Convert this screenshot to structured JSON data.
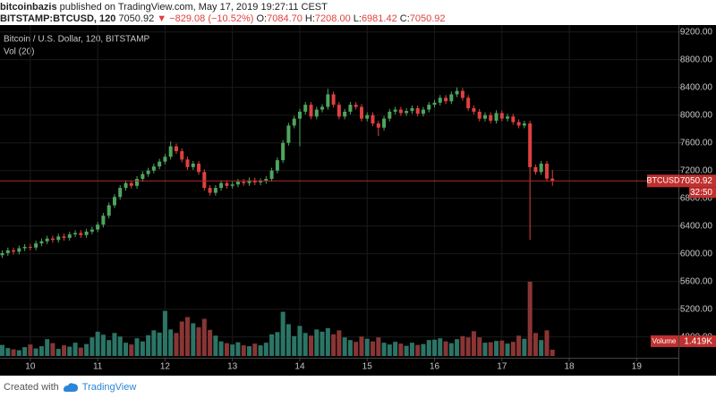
{
  "header": {
    "publisher": "bitcoinbazis",
    "published": "published on TradingView.com, May 17, 2019 19:27:11 CEST",
    "symbol": "BITSTAMP:BTCUSD, 120",
    "last": "7050.92",
    "change": "▼ −829.08 (−10.52%)",
    "ohlc": [
      {
        "label": "O:",
        "value": "7084.70"
      },
      {
        "label": "H:",
        "value": "7208.00"
      },
      {
        "label": "L:",
        "value": "6981.42"
      },
      {
        "label": "C:",
        "value": "7050.92"
      }
    ]
  },
  "footer": {
    "created": "Created with",
    "brand": "TradingView"
  },
  "chart_data": {
    "type": "candlestick",
    "title": "Bitcoin / U.S. Dollar, 120, BITSTAMP",
    "subtitle": "Vol (20)",
    "symbol": "BTCUSD",
    "countdown": "32:50",
    "up_color": "#4fa55d",
    "down_color": "#e0403f",
    "grid": true,
    "x": [
      9.583,
      9.667,
      9.75,
      9.833,
      9.917,
      10,
      10.083,
      10.167,
      10.25,
      10.333,
      10.417,
      10.5,
      10.583,
      10.667,
      10.75,
      10.833,
      10.917,
      11,
      11.083,
      11.167,
      11.25,
      11.333,
      11.417,
      11.5,
      11.583,
      11.667,
      11.75,
      11.833,
      11.917,
      12,
      12.083,
      12.167,
      12.25,
      12.333,
      12.417,
      12.5,
      12.583,
      12.667,
      12.75,
      12.833,
      12.917,
      13,
      13.083,
      13.167,
      13.25,
      13.333,
      13.417,
      13.5,
      13.583,
      13.667,
      13.75,
      13.833,
      13.917,
      14,
      14.083,
      14.167,
      14.25,
      14.333,
      14.417,
      14.5,
      14.583,
      14.667,
      14.75,
      14.833,
      14.917,
      15,
      15.083,
      15.167,
      15.25,
      15.333,
      15.417,
      15.5,
      15.583,
      15.667,
      15.75,
      15.833,
      15.917,
      16,
      16.083,
      16.167,
      16.25,
      16.333,
      16.417,
      16.5,
      16.583,
      16.667,
      16.75,
      16.833,
      16.917,
      17,
      17.083,
      17.167,
      17.25,
      17.333,
      17.417,
      17.5,
      17.583,
      17.667,
      17.75
    ],
    "open": [
      5980,
      6010,
      6050,
      6030,
      6080,
      6100,
      6090,
      6150,
      6180,
      6220,
      6200,
      6250,
      6230,
      6280,
      6300,
      6270,
      6320,
      6350,
      6420,
      6550,
      6700,
      6820,
      6950,
      7020,
      6980,
      7080,
      7150,
      7200,
      7260,
      7330,
      7400,
      7550,
      7480,
      7360,
      7250,
      7300,
      7180,
      6950,
      6880,
      6950,
      7020,
      6980,
      7000,
      7040,
      7020,
      7060,
      7030,
      7050,
      7080,
      7200,
      7350,
      7600,
      7850,
      7950,
      8050,
      8150,
      7980,
      8080,
      8120,
      8300,
      8150,
      7980,
      8050,
      8150,
      8120,
      7950,
      8000,
      7880,
      7820,
      7950,
      8050,
      8080,
      8030,
      8060,
      8100,
      8020,
      8080,
      8150,
      8180,
      8250,
      8200,
      8300,
      8350,
      8250,
      8100,
      8050,
      7950,
      8000,
      7920,
      8030,
      7950,
      7980,
      7900,
      7850,
      7880,
      7250,
      7180,
      7300,
      7084.7
    ],
    "high": [
      6050,
      6090,
      6090,
      6120,
      6140,
      6140,
      6190,
      6220,
      6260,
      6260,
      6290,
      6290,
      6320,
      6340,
      6340,
      6360,
      6390,
      6460,
      6590,
      6740,
      6860,
      6990,
      7060,
      7060,
      7120,
      7190,
      7240,
      7300,
      7370,
      7440,
      7620,
      7590,
      7520,
      7400,
      7340,
      7340,
      7220,
      6990,
      6990,
      7060,
      7060,
      7040,
      7080,
      7080,
      7100,
      7100,
      7090,
      7120,
      7240,
      7390,
      7640,
      7890,
      7990,
      8090,
      8190,
      8190,
      8120,
      8160,
      8380,
      8340,
      8190,
      8090,
      8190,
      8190,
      8160,
      8040,
      8040,
      7920,
      7990,
      8090,
      8120,
      8120,
      8100,
      8140,
      8140,
      8120,
      8190,
      8220,
      8290,
      8290,
      8340,
      8400,
      8390,
      8290,
      8140,
      8090,
      8040,
      8040,
      8070,
      8070,
      8020,
      8020,
      7940,
      7920,
      7920,
      7290,
      7340,
      7340,
      7208
    ],
    "low": [
      5940,
      5970,
      5990,
      5990,
      6040,
      6050,
      6050,
      6110,
      6140,
      6160,
      6160,
      6190,
      6190,
      6240,
      6230,
      6230,
      6280,
      6310,
      6380,
      6510,
      6660,
      6780,
      6910,
      6940,
      6940,
      7040,
      7110,
      7160,
      7220,
      7290,
      7360,
      7440,
      7320,
      7210,
      7210,
      7140,
      6910,
      6840,
      6840,
      6910,
      6940,
      6940,
      6960,
      6980,
      6980,
      6990,
      6990,
      7010,
      7040,
      7160,
      7310,
      7560,
      7810,
      7550,
      8010,
      7940,
      7940,
      8040,
      8080,
      8110,
      7940,
      7940,
      8010,
      8080,
      7910,
      7910,
      7840,
      7700,
      7780,
      7910,
      8010,
      7990,
      7990,
      8020,
      7980,
      7980,
      8040,
      8110,
      8140,
      8160,
      8160,
      8260,
      8210,
      8060,
      8010,
      7910,
      7910,
      7880,
      7880,
      7910,
      7910,
      7860,
      7810,
      7810,
      6200,
      7140,
      7140,
      7040,
      6981.42
    ],
    "close": [
      6010,
      6050,
      6030,
      6080,
      6100,
      6090,
      6150,
      6180,
      6220,
      6200,
      6250,
      6230,
      6280,
      6300,
      6270,
      6320,
      6350,
      6420,
      6550,
      6700,
      6820,
      6950,
      7020,
      6980,
      7080,
      7150,
      7200,
      7260,
      7330,
      7400,
      7550,
      7480,
      7360,
      7250,
      7300,
      7180,
      6950,
      6880,
      6950,
      7020,
      6980,
      7000,
      7040,
      7020,
      7060,
      7030,
      7050,
      7080,
      7200,
      7350,
      7600,
      7850,
      7950,
      8050,
      8150,
      7980,
      8080,
      8120,
      8300,
      8150,
      7980,
      8050,
      8150,
      8120,
      7950,
      8000,
      7880,
      7820,
      7950,
      8050,
      8080,
      8030,
      8060,
      8100,
      8020,
      8080,
      8150,
      8180,
      8250,
      8200,
      8300,
      8350,
      8250,
      8100,
      8050,
      7950,
      8000,
      7920,
      8030,
      7950,
      7980,
      7900,
      7850,
      7880,
      7250,
      7180,
      7300,
      7084.7,
      7050.92
    ],
    "volume": {
      "name": "Volume",
      "up_color": "#2b7566",
      "down_color": "#8a3535",
      "values": [
        2500,
        1800,
        1500,
        1300,
        2000,
        2600,
        1700,
        2200,
        3800,
        2900,
        1600,
        2400,
        2100,
        3000,
        1900,
        2700,
        4200,
        5500,
        4800,
        3600,
        5200,
        4400,
        3000,
        2600,
        4000,
        3300,
        4700,
        5800,
        5300,
        10200,
        6000,
        5200,
        7800,
        8800,
        7400,
        6500,
        8400,
        5900,
        4600,
        3300,
        2900,
        2600,
        3100,
        2400,
        2200,
        2800,
        2400,
        3000,
        4900,
        5400,
        10000,
        7200,
        4500,
        6800,
        5200,
        4600,
        6000,
        5500,
        6300,
        4900,
        5800,
        4200,
        3600,
        3200,
        4400,
        3900,
        3300,
        4200,
        3000,
        2600,
        3200,
        2800,
        2300,
        3000,
        2500,
        2700,
        3600,
        3700,
        4000,
        3300,
        2900,
        3800,
        4500,
        4200,
        5600,
        4200,
        3000,
        3100,
        3400,
        3500,
        2800,
        3200,
        4600,
        3900,
        16800,
        5200,
        3600,
        5800,
        1419
      ],
      "value_labels": [
        null,
        null,
        null,
        null,
        null,
        null,
        null,
        null,
        null,
        null,
        null,
        null,
        null,
        null,
        null,
        null,
        null,
        null,
        null,
        null,
        null,
        null,
        null,
        null,
        null,
        null,
        null,
        null,
        null,
        null,
        null,
        null,
        null,
        null,
        null,
        null,
        null,
        null,
        null,
        null,
        null,
        null,
        null,
        null,
        null,
        null,
        null,
        null,
        null,
        null,
        null,
        null,
        null,
        null,
        null,
        null,
        null,
        null,
        null,
        null,
        null,
        null,
        null,
        null,
        null,
        null,
        null,
        null,
        null,
        null,
        null,
        null,
        null,
        null,
        null,
        null,
        null,
        null,
        null,
        null,
        null,
        null,
        null,
        null,
        null,
        null,
        null,
        null,
        null,
        null,
        null,
        null,
        null,
        null,
        null,
        null,
        null,
        null,
        "1.419K"
      ]
    },
    "xlim": [
      9.55,
      19.62
    ],
    "xticks": [
      10,
      11,
      12,
      13,
      14,
      15,
      16,
      17,
      18,
      19
    ],
    "ylim": [
      4500,
      9300
    ],
    "yticks": [
      {
        "value": 4800,
        "label": "4800.00"
      },
      {
        "value": 5200,
        "label": "5200.00"
      },
      {
        "value": 5600,
        "label": "5600.00"
      },
      {
        "value": 6000,
        "label": "6000.00"
      },
      {
        "value": 6400,
        "label": "6400.00"
      },
      {
        "value": 6800,
        "label": "6800.00"
      },
      {
        "value": 7200,
        "label": "7200.00"
      },
      {
        "value": 7600,
        "label": "7600.00"
      },
      {
        "value": 8000,
        "label": "8000.00"
      },
      {
        "value": 8400,
        "label": "8400.00"
      },
      {
        "value": 8800,
        "label": "8800.00"
      },
      {
        "value": 9200,
        "label": "9200.00"
      }
    ]
  }
}
